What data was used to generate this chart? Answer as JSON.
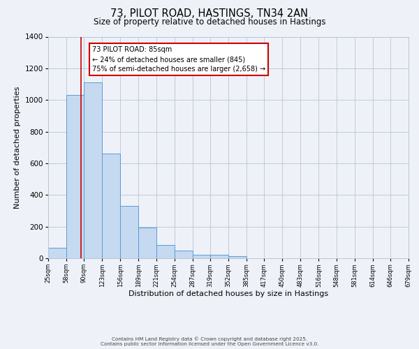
{
  "title": "73, PILOT ROAD, HASTINGS, TN34 2AN",
  "subtitle": "Size of property relative to detached houses in Hastings",
  "xlabel": "Distribution of detached houses by size in Hastings",
  "ylabel": "Number of detached properties",
  "bar_edges": [
    25,
    58,
    90,
    123,
    156,
    189,
    221,
    254,
    287,
    319,
    352,
    385,
    417,
    450,
    483,
    516,
    548,
    581,
    614,
    646,
    679
  ],
  "bar_heights": [
    65,
    1030,
    1110,
    660,
    330,
    195,
    85,
    48,
    22,
    22,
    15,
    0,
    0,
    0,
    0,
    0,
    0,
    0,
    0,
    0
  ],
  "bar_color": "#c5d9f0",
  "bar_edge_color": "#5b9bd5",
  "vline_x": 85,
  "vline_color": "#cc0000",
  "annotation_title": "73 PILOT ROAD: 85sqm",
  "annotation_line1": "← 24% of detached houses are smaller (845)",
  "annotation_line2": "75% of semi-detached houses are larger (2,658) →",
  "annotation_box_color": "#ffffff",
  "annotation_box_edge": "#cc0000",
  "ylim": [
    0,
    1400
  ],
  "yticks": [
    0,
    200,
    400,
    600,
    800,
    1000,
    1200,
    1400
  ],
  "grid_color": "#b8c4d4",
  "background_color": "#eef2f8",
  "footnote1": "Contains HM Land Registry data © Crown copyright and database right 2025.",
  "footnote2": "Contains public sector information licensed under the Open Government Licence v3.0."
}
